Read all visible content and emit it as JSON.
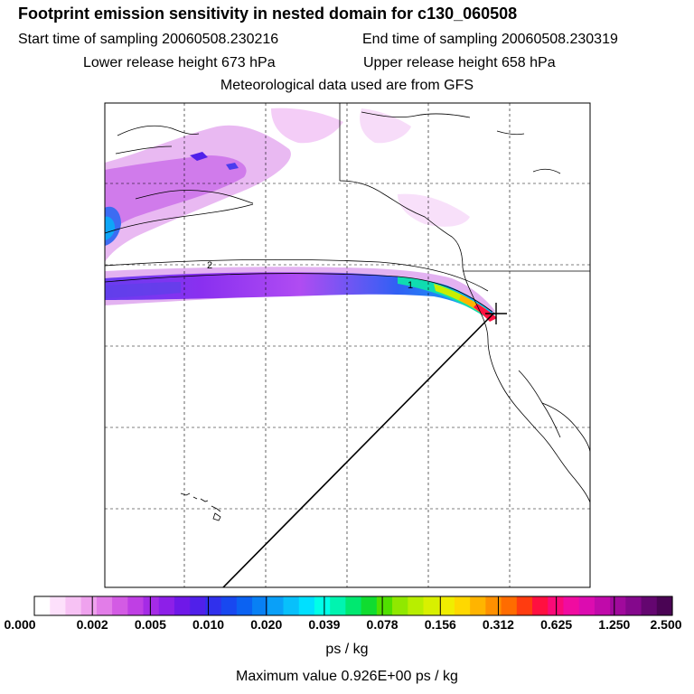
{
  "header": {
    "title": "Footprint emission sensitivity in nested domain for c130_060508",
    "start_time": "Start time of sampling 20060508.230216",
    "end_time": "End time of sampling 20060508.230319",
    "lower_height": "Lower release height  673 hPa",
    "upper_height": "Upper release height  658 hPa",
    "met_source": "Meteorological data used are from GFS"
  },
  "map": {
    "contour_labels": [
      "2",
      "1"
    ],
    "release_marker": "+"
  },
  "colorbar": {
    "units": "ps / kg",
    "tick_labels": [
      "0.000",
      "0.002",
      "0.005",
      "0.010",
      "0.020",
      "0.039",
      "0.078",
      "0.156",
      "0.312",
      "0.625",
      "1.250",
      "2.500"
    ],
    "colors": [
      "#ffffff",
      "#fde0fb",
      "#f7c2f4",
      "#efa2ee",
      "#e27de8",
      "#d35be4",
      "#bf3fe4",
      "#a52be6",
      "#8d1fe8",
      "#6f18e8",
      "#5020ea",
      "#3030ec",
      "#1848f0",
      "#0b62f2",
      "#0880f4",
      "#0aa0f8",
      "#08c0fb",
      "#00e0ff",
      "#00ffe8",
      "#00f4b0",
      "#00e870",
      "#10dc30",
      "#50e000",
      "#90e800",
      "#b8ee00",
      "#d8f000",
      "#f0ee00",
      "#ffd800",
      "#ffb400",
      "#ff9000",
      "#ff6c00",
      "#ff3c10",
      "#ff1040",
      "#fa0a78",
      "#f00ca0",
      "#dc0cb0",
      "#c00aaa",
      "#a00a9c",
      "#84088c",
      "#640670",
      "#4a0454"
    ],
    "max_value": "Maximum value  0.926E+00 ps / kg"
  }
}
